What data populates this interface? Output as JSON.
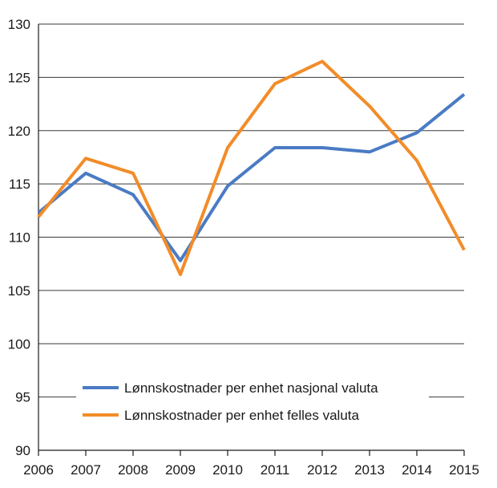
{
  "chart_data": {
    "type": "line",
    "title": "",
    "xlabel": "",
    "ylabel": "",
    "categories": [
      "2006",
      "2007",
      "2008",
      "2009",
      "2010",
      "2011",
      "2012",
      "2013",
      "2014",
      "2015"
    ],
    "ylim": [
      90,
      130
    ],
    "yticks": [
      90,
      95,
      100,
      105,
      110,
      115,
      120,
      125,
      130
    ],
    "grid": true,
    "legend_position": "bottom-right",
    "series": [
      {
        "name": "Lønnskostnader per enhet nasjonal valuta",
        "color": "#4a7bc4",
        "values": [
          112.3,
          116.0,
          114.0,
          107.8,
          114.8,
          118.4,
          118.4,
          118.0,
          119.8,
          123.4
        ]
      },
      {
        "name": "Lønnskostnader per enhet felles valuta",
        "color": "#f28c28",
        "values": [
          111.9,
          117.4,
          116.0,
          106.5,
          118.4,
          124.4,
          126.5,
          122.3,
          117.2,
          108.8
        ]
      }
    ]
  }
}
